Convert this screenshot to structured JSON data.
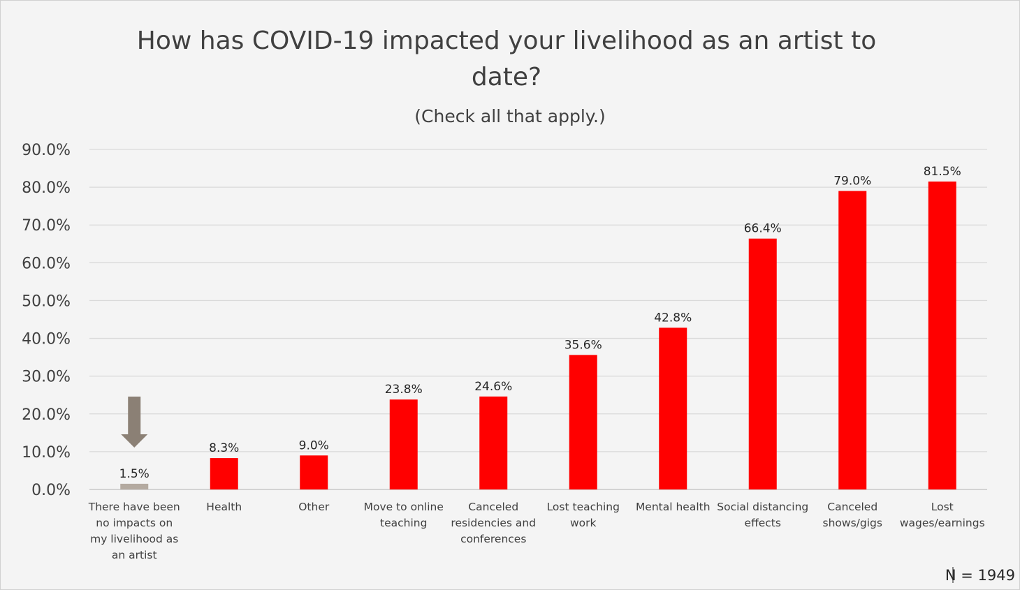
{
  "chart_data": {
    "type": "bar",
    "title_lines": [
      "How has COVID-19 impacted your livelihood as an artist to",
      "date?"
    ],
    "subtitle": "(Check all that apply.)",
    "categories": [
      [
        "There have been",
        "no impacts on",
        "my livelihood as",
        "an artist"
      ],
      [
        "Health"
      ],
      [
        "Other"
      ],
      [
        "Move to online",
        "teaching"
      ],
      [
        "Canceled",
        "residencies and",
        "conferences"
      ],
      [
        "Lost teaching",
        "work"
      ],
      [
        "Mental health"
      ],
      [
        "Social distancing",
        "effects"
      ],
      [
        "Canceled",
        "shows/gigs"
      ],
      [
        "Lost",
        "wages/earnings"
      ]
    ],
    "values": [
      1.5,
      8.3,
      9.0,
      23.8,
      24.6,
      35.6,
      42.8,
      66.4,
      79.0,
      81.5
    ],
    "value_labels": [
      "1.5%",
      "8.3%",
      "9.0%",
      "23.8%",
      "24.6%",
      "35.6%",
      "42.8%",
      "66.4%",
      "79.0%",
      "81.5%"
    ],
    "bar_colors": [
      "#b4aaa0",
      "#ff0000",
      "#ff0000",
      "#ff0000",
      "#ff0000",
      "#ff0000",
      "#ff0000",
      "#ff0000",
      "#ff0000",
      "#ff0000"
    ],
    "ylim": [
      0,
      90
    ],
    "yticks": [
      0,
      10,
      20,
      30,
      40,
      50,
      60,
      70,
      80,
      90
    ],
    "ytick_labels": [
      "0.0%",
      "10.0%",
      "20.0%",
      "30.0%",
      "40.0%",
      "50.0%",
      "60.0%",
      "70.0%",
      "80.0%",
      "90.0%"
    ],
    "grid": true,
    "annotation": {
      "type": "down-arrow",
      "target_category_index": 0,
      "color": "#8b8075"
    },
    "note": "N = 1949"
  }
}
